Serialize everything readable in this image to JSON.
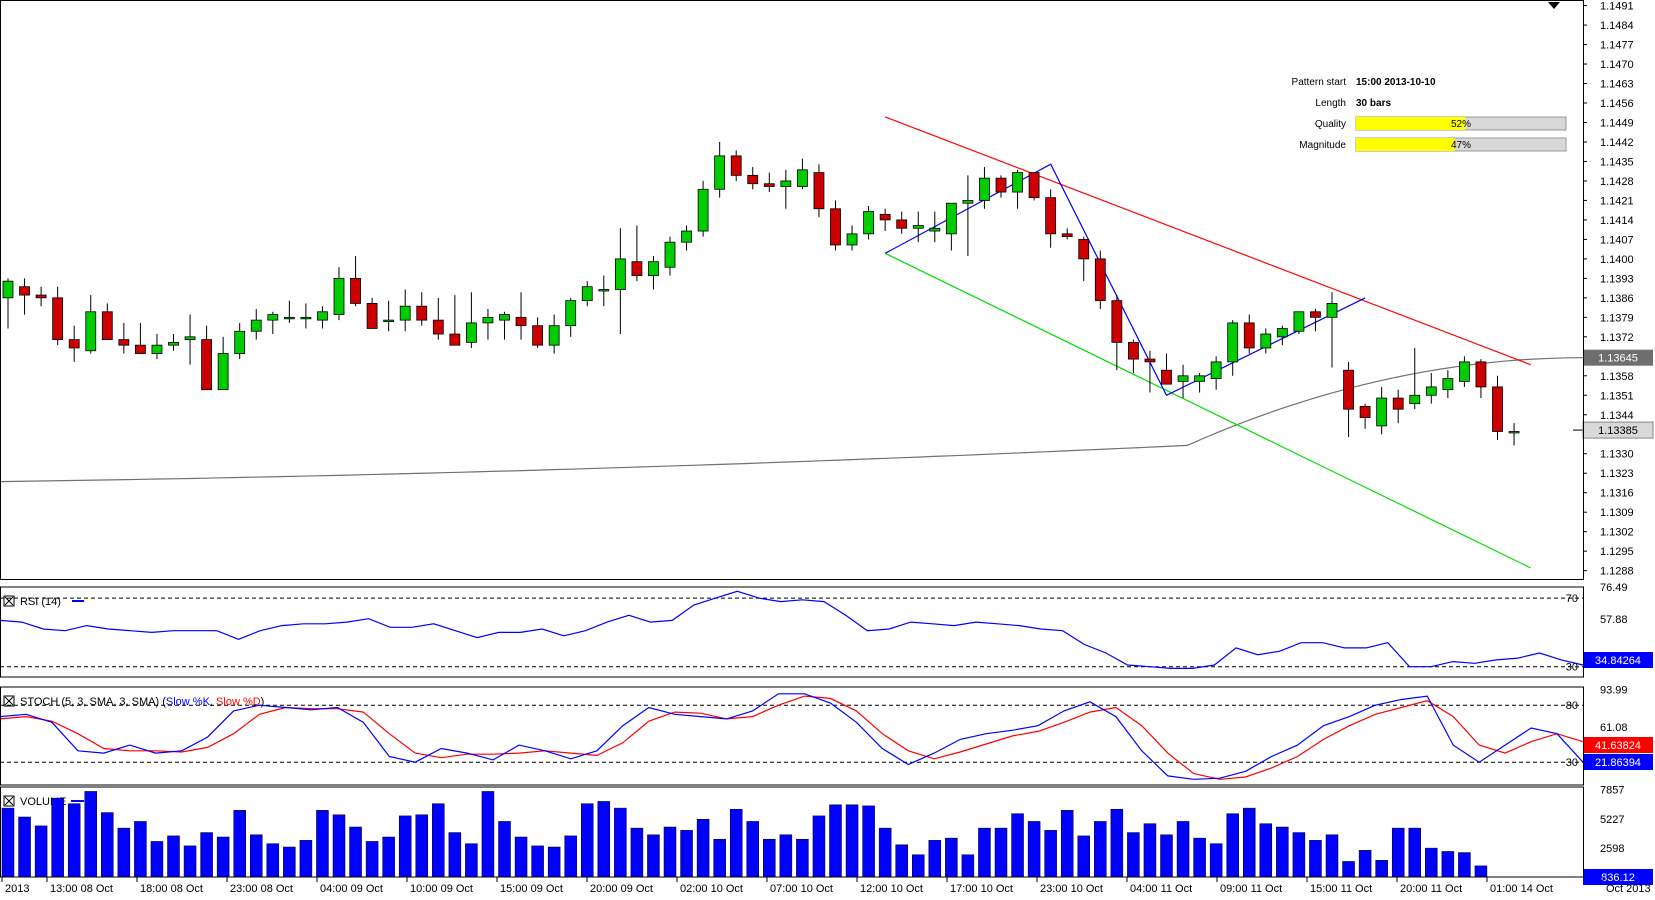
{
  "chart_data": {
    "type": "candlestick",
    "symbol_pattern": "descending channel",
    "price_scale": [
      "1.1491",
      "1.1484",
      "1.1477",
      "1.1470",
      "1.1463",
      "1.1456",
      "1.1449",
      "1.1442",
      "1.1435",
      "1.1428",
      "1.1421",
      "1.1414",
      "1.1407",
      "1.1400",
      "1.1393",
      "1.1386",
      "1.1379",
      "1.1372",
      "1.1365",
      "1.1358",
      "1.1351",
      "1.1344",
      "1.1337",
      "1.1330",
      "1.1323",
      "1.1316",
      "1.1309",
      "1.1302",
      "1.1295",
      "1.1288"
    ],
    "price_range": [
      1.1285,
      1.1493
    ],
    "last_price_label": "1.13385",
    "ma_price_label": "1.13645",
    "candles": [
      [
        1.1386,
        1.1393,
        1.1375,
        1.1392
      ],
      [
        1.139,
        1.1393,
        1.138,
        1.1387
      ],
      [
        1.1387,
        1.139,
        1.1383,
        1.1386
      ],
      [
        1.1386,
        1.139,
        1.1369,
        1.1371
      ],
      [
        1.1371,
        1.1376,
        1.1363,
        1.1368
      ],
      [
        1.1367,
        1.1387,
        1.1366,
        1.1381
      ],
      [
        1.1381,
        1.1384,
        1.1371,
        1.1371
      ],
      [
        1.1371,
        1.1377,
        1.1366,
        1.1369
      ],
      [
        1.1369,
        1.1377,
        1.1366,
        1.1366
      ],
      [
        1.1366,
        1.1373,
        1.1364,
        1.1369
      ],
      [
        1.1369,
        1.1373,
        1.1367,
        1.137
      ],
      [
        1.1371,
        1.138,
        1.1362,
        1.1372
      ],
      [
        1.1371,
        1.1376,
        1.1353,
        1.1353
      ],
      [
        1.1353,
        1.1372,
        1.1353,
        1.1366
      ],
      [
        1.1366,
        1.1377,
        1.1364,
        1.1374
      ],
      [
        1.1374,
        1.1382,
        1.1371,
        1.1378
      ],
      [
        1.1378,
        1.1381,
        1.1373,
        1.138
      ],
      [
        1.1379,
        1.1385,
        1.1377,
        1.1379
      ],
      [
        1.1379,
        1.1384,
        1.1375,
        1.1379
      ],
      [
        1.1378,
        1.1383,
        1.1375,
        1.1381
      ],
      [
        1.138,
        1.1397,
        1.1378,
        1.1393
      ],
      [
        1.1393,
        1.1401,
        1.1383,
        1.1384
      ],
      [
        1.1384,
        1.1386,
        1.1376,
        1.1375
      ],
      [
        1.1378,
        1.1385,
        1.1374,
        1.1378
      ],
      [
        1.1378,
        1.1389,
        1.1374,
        1.1383
      ],
      [
        1.1383,
        1.1388,
        1.1376,
        1.1378
      ],
      [
        1.1378,
        1.1386,
        1.1371,
        1.1373
      ],
      [
        1.1373,
        1.1387,
        1.1369,
        1.1369
      ],
      [
        1.137,
        1.1388,
        1.1368,
        1.1377
      ],
      [
        1.1377,
        1.1382,
        1.1371,
        1.1379
      ],
      [
        1.1378,
        1.1381,
        1.1371,
        1.138
      ],
      [
        1.1379,
        1.1388,
        1.1371,
        1.1376
      ],
      [
        1.1376,
        1.1379,
        1.1368,
        1.1369
      ],
      [
        1.1369,
        1.138,
        1.1366,
        1.1376
      ],
      [
        1.1376,
        1.1386,
        1.1372,
        1.1385
      ],
      [
        1.1385,
        1.1392,
        1.1383,
        1.139
      ],
      [
        1.1389,
        1.1394,
        1.1383,
        1.1389
      ],
      [
        1.1389,
        1.1411,
        1.1373,
        1.14
      ],
      [
        1.1399,
        1.1412,
        1.1392,
        1.1394
      ],
      [
        1.1394,
        1.1401,
        1.1389,
        1.1399
      ],
      [
        1.1397,
        1.1408,
        1.1394,
        1.1406
      ],
      [
        1.1406,
        1.1412,
        1.1403,
        1.141
      ],
      [
        1.141,
        1.1428,
        1.1408,
        1.1425
      ],
      [
        1.1425,
        1.1442,
        1.1422,
        1.1437
      ],
      [
        1.1437,
        1.1439,
        1.1428,
        1.143
      ],
      [
        1.143,
        1.1433,
        1.1425,
        1.1427
      ],
      [
        1.1427,
        1.1431,
        1.1424,
        1.1426
      ],
      [
        1.1426,
        1.1432,
        1.1418,
        1.1428
      ],
      [
        1.1426,
        1.1436,
        1.1425,
        1.1432
      ],
      [
        1.1431,
        1.1434,
        1.1415,
        1.1418
      ],
      [
        1.1418,
        1.1421,
        1.1403,
        1.1405
      ],
      [
        1.1405,
        1.1412,
        1.1403,
        1.1409
      ],
      [
        1.1409,
        1.1419,
        1.1407,
        1.1417
      ],
      [
        1.1416,
        1.1418,
        1.141,
        1.1414
      ],
      [
        1.1414,
        1.1417,
        1.1409,
        1.1411
      ],
      [
        1.1411,
        1.1417,
        1.1406,
        1.1412
      ],
      [
        1.141,
        1.1417,
        1.1406,
        1.1411
      ],
      [
        1.1409,
        1.1419,
        1.1403,
        1.142
      ],
      [
        1.142,
        1.143,
        1.1401,
        1.1421
      ],
      [
        1.1421,
        1.1433,
        1.1418,
        1.1429
      ],
      [
        1.1429,
        1.143,
        1.1422,
        1.1424
      ],
      [
        1.1424,
        1.1432,
        1.1418,
        1.1431
      ],
      [
        1.1431,
        1.1431,
        1.1421,
        1.1422
      ],
      [
        1.1422,
        1.1425,
        1.1404,
        1.1409
      ],
      [
        1.1409,
        1.1411,
        1.1407,
        1.1408
      ],
      [
        1.1407,
        1.1408,
        1.1392,
        1.14
      ],
      [
        1.14,
        1.1403,
        1.1382,
        1.1385
      ],
      [
        1.1385,
        1.1387,
        1.136,
        1.137
      ],
      [
        1.137,
        1.1371,
        1.1359,
        1.1364
      ],
      [
        1.1364,
        1.1367,
        1.1352,
        1.1363
      ],
      [
        1.136,
        1.1366,
        1.1355,
        1.1355
      ],
      [
        1.1356,
        1.1362,
        1.135,
        1.1358
      ],
      [
        1.1356,
        1.1359,
        1.1352,
        1.1358
      ],
      [
        1.1357,
        1.1365,
        1.1353,
        1.1363
      ],
      [
        1.1363,
        1.1378,
        1.1358,
        1.1377
      ],
      [
        1.1377,
        1.138,
        1.1366,
        1.1368
      ],
      [
        1.1368,
        1.1375,
        1.1366,
        1.1373
      ],
      [
        1.1372,
        1.1376,
        1.1369,
        1.1375
      ],
      [
        1.1374,
        1.138,
        1.1373,
        1.1381
      ],
      [
        1.1381,
        1.1382,
        1.1374,
        1.1379
      ],
      [
        1.1379,
        1.1388,
        1.1361,
        1.1384
      ],
      [
        1.136,
        1.1363,
        1.1336,
        1.1346
      ],
      [
        1.1347,
        1.1348,
        1.1339,
        1.1343
      ],
      [
        1.134,
        1.1354,
        1.1337,
        1.135
      ],
      [
        1.135,
        1.1353,
        1.1341,
        1.1346
      ],
      [
        1.1348,
        1.1368,
        1.1346,
        1.1351
      ],
      [
        1.1351,
        1.1359,
        1.1348,
        1.1354
      ],
      [
        1.1353,
        1.136,
        1.135,
        1.1357
      ],
      [
        1.1356,
        1.1365,
        1.1354,
        1.1363
      ],
      [
        1.1363,
        1.1364,
        1.135,
        1.1354
      ],
      [
        1.1354,
        1.1358,
        1.1335,
        1.1338
      ],
      [
        1.1338,
        1.1341,
        1.1333,
        1.1338
      ]
    ],
    "moving_average": {
      "start": 1.132,
      "mid": 1.1333,
      "end": 1.13645
    },
    "pattern": {
      "upper_line": [
        [
          53,
          1.1451
        ],
        [
          92,
          1.1362
        ]
      ],
      "lower_line": [
        [
          53,
          1.1402
        ],
        [
          92,
          1.1289
        ]
      ],
      "zigzag": [
        [
          53,
          1.1402
        ],
        [
          63,
          1.1434
        ],
        [
          70,
          1.1351
        ],
        [
          82,
          1.1386
        ]
      ]
    },
    "pattern_info": {
      "pattern_start_label": "Pattern start",
      "pattern_start_value": "15:00 2013-10-10",
      "length_label": "Length",
      "length_value": "30 bars",
      "quality_label": "Quality",
      "quality_pct": 52,
      "quality_text": "52%",
      "magnitude_label": "Magnitude",
      "magnitude_pct": 47,
      "magnitude_text": "47%"
    },
    "x_labels": [
      "2013",
      "13:00 08 Oct",
      "18:00 08 Oct",
      "23:00 08 Oct",
      "04:00 09 Oct",
      "10:00 09 Oct",
      "15:00 09 Oct",
      "20:00 09 Oct",
      "02:00 10 Oct",
      "07:00 10 Oct",
      "12:00 10 Oct",
      "17:00 10 Oct",
      "23:00 10 Oct",
      "04:00 11 Oct",
      "09:00 11 Oct",
      "15:00 11 Oct",
      "20:00 11 Oct",
      "01:00 14 Oct",
      "Oct 2013"
    ],
    "rsi": {
      "title": "RSI (14)",
      "scale": [
        "76.49",
        "57.88"
      ],
      "scale_top": 76.49,
      "scale_bottom": 24,
      "level_labels": [
        "70",
        "30"
      ],
      "levels": [
        70,
        30
      ],
      "value_label": "34.84264",
      "values": [
        57,
        56,
        52,
        51,
        54,
        52,
        51,
        50,
        51,
        51,
        51,
        46,
        51,
        54,
        55,
        55,
        56,
        58,
        53,
        53,
        55,
        51,
        47,
        50,
        50,
        52,
        48,
        51,
        56,
        60,
        56,
        57,
        66,
        70,
        74,
        70,
        68,
        69,
        68,
        60,
        51,
        52,
        56,
        55,
        54,
        56,
        55,
        54,
        52,
        51,
        43,
        38,
        31,
        30,
        29,
        29,
        31,
        41,
        37,
        39,
        44,
        44,
        41,
        41,
        44,
        30,
        30,
        33,
        32,
        34,
        35,
        38,
        34,
        31
      ]
    },
    "stoch": {
      "title": "STOCH (5, 3, SMA, 3, SMA)",
      "k_label": "Slow %K,",
      "d_label": "Slow %D",
      "scale": [
        "93.99",
        "61.08"
      ],
      "scale_top": 96,
      "scale_bottom": 10,
      "level_labels": [
        "80",
        "30"
      ],
      "levels": [
        80,
        30
      ],
      "value_k_label": "21.86394",
      "value_d_label": "41.63824",
      "k": [
        70,
        72,
        65,
        40,
        38,
        45,
        38,
        40,
        52,
        75,
        80,
        78,
        76,
        78,
        65,
        35,
        30,
        42,
        38,
        32,
        45,
        40,
        33,
        40,
        62,
        78,
        72,
        70,
        68,
        75,
        90,
        90,
        82,
        65,
        42,
        28,
        38,
        50,
        55,
        58,
        62,
        75,
        83,
        70,
        40,
        18,
        15,
        16,
        22,
        35,
        45,
        62,
        70,
        80,
        85,
        88,
        45,
        30,
        45,
        60,
        55,
        30
      ],
      "d": [
        68,
        70,
        66,
        55,
        42,
        40,
        40,
        39,
        43,
        55,
        72,
        78,
        77,
        77,
        74,
        55,
        38,
        34,
        37,
        37,
        38,
        40,
        38,
        36,
        47,
        66,
        74,
        73,
        68,
        70,
        80,
        88,
        86,
        75,
        55,
        40,
        33,
        39,
        46,
        53,
        57,
        65,
        74,
        78,
        62,
        38,
        20,
        15,
        17,
        25,
        35,
        50,
        62,
        72,
        78,
        84,
        70,
        45,
        38,
        48,
        55,
        48
      ]
    },
    "volume": {
      "title": "VOLUME",
      "scale": [
        "7857",
        "5227",
        "2598"
      ],
      "scale_top": 8100,
      "value_label": "836.12",
      "values": [
        6200,
        5400,
        4600,
        7100,
        6600,
        7700,
        5800,
        4400,
        5000,
        3200,
        3700,
        2800,
        4000,
        3600,
        6000,
        3800,
        3000,
        2700,
        3300,
        6000,
        5600,
        4500,
        3200,
        3600,
        5500,
        5600,
        6600,
        4000,
        3000,
        7700,
        5000,
        3600,
        2800,
        2700,
        3700,
        6600,
        6800,
        6200,
        4400,
        3800,
        4500,
        4200,
        5200,
        3400,
        6100,
        5000,
        3400,
        3800,
        3400,
        5500,
        6500,
        6500,
        6400,
        4400,
        2900,
        2000,
        3300,
        3500,
        2000,
        4400,
        4400,
        5700,
        5000,
        4200,
        6000,
        3700,
        5000,
        6100,
        4000,
        4800,
        3800,
        5000,
        3500,
        3000,
        5700,
        6200,
        4800,
        4500,
        4000,
        3300,
        3800,
        1400,
        2400,
        1500,
        4400,
        4400,
        2600,
        2300,
        2200,
        1000
      ]
    }
  }
}
